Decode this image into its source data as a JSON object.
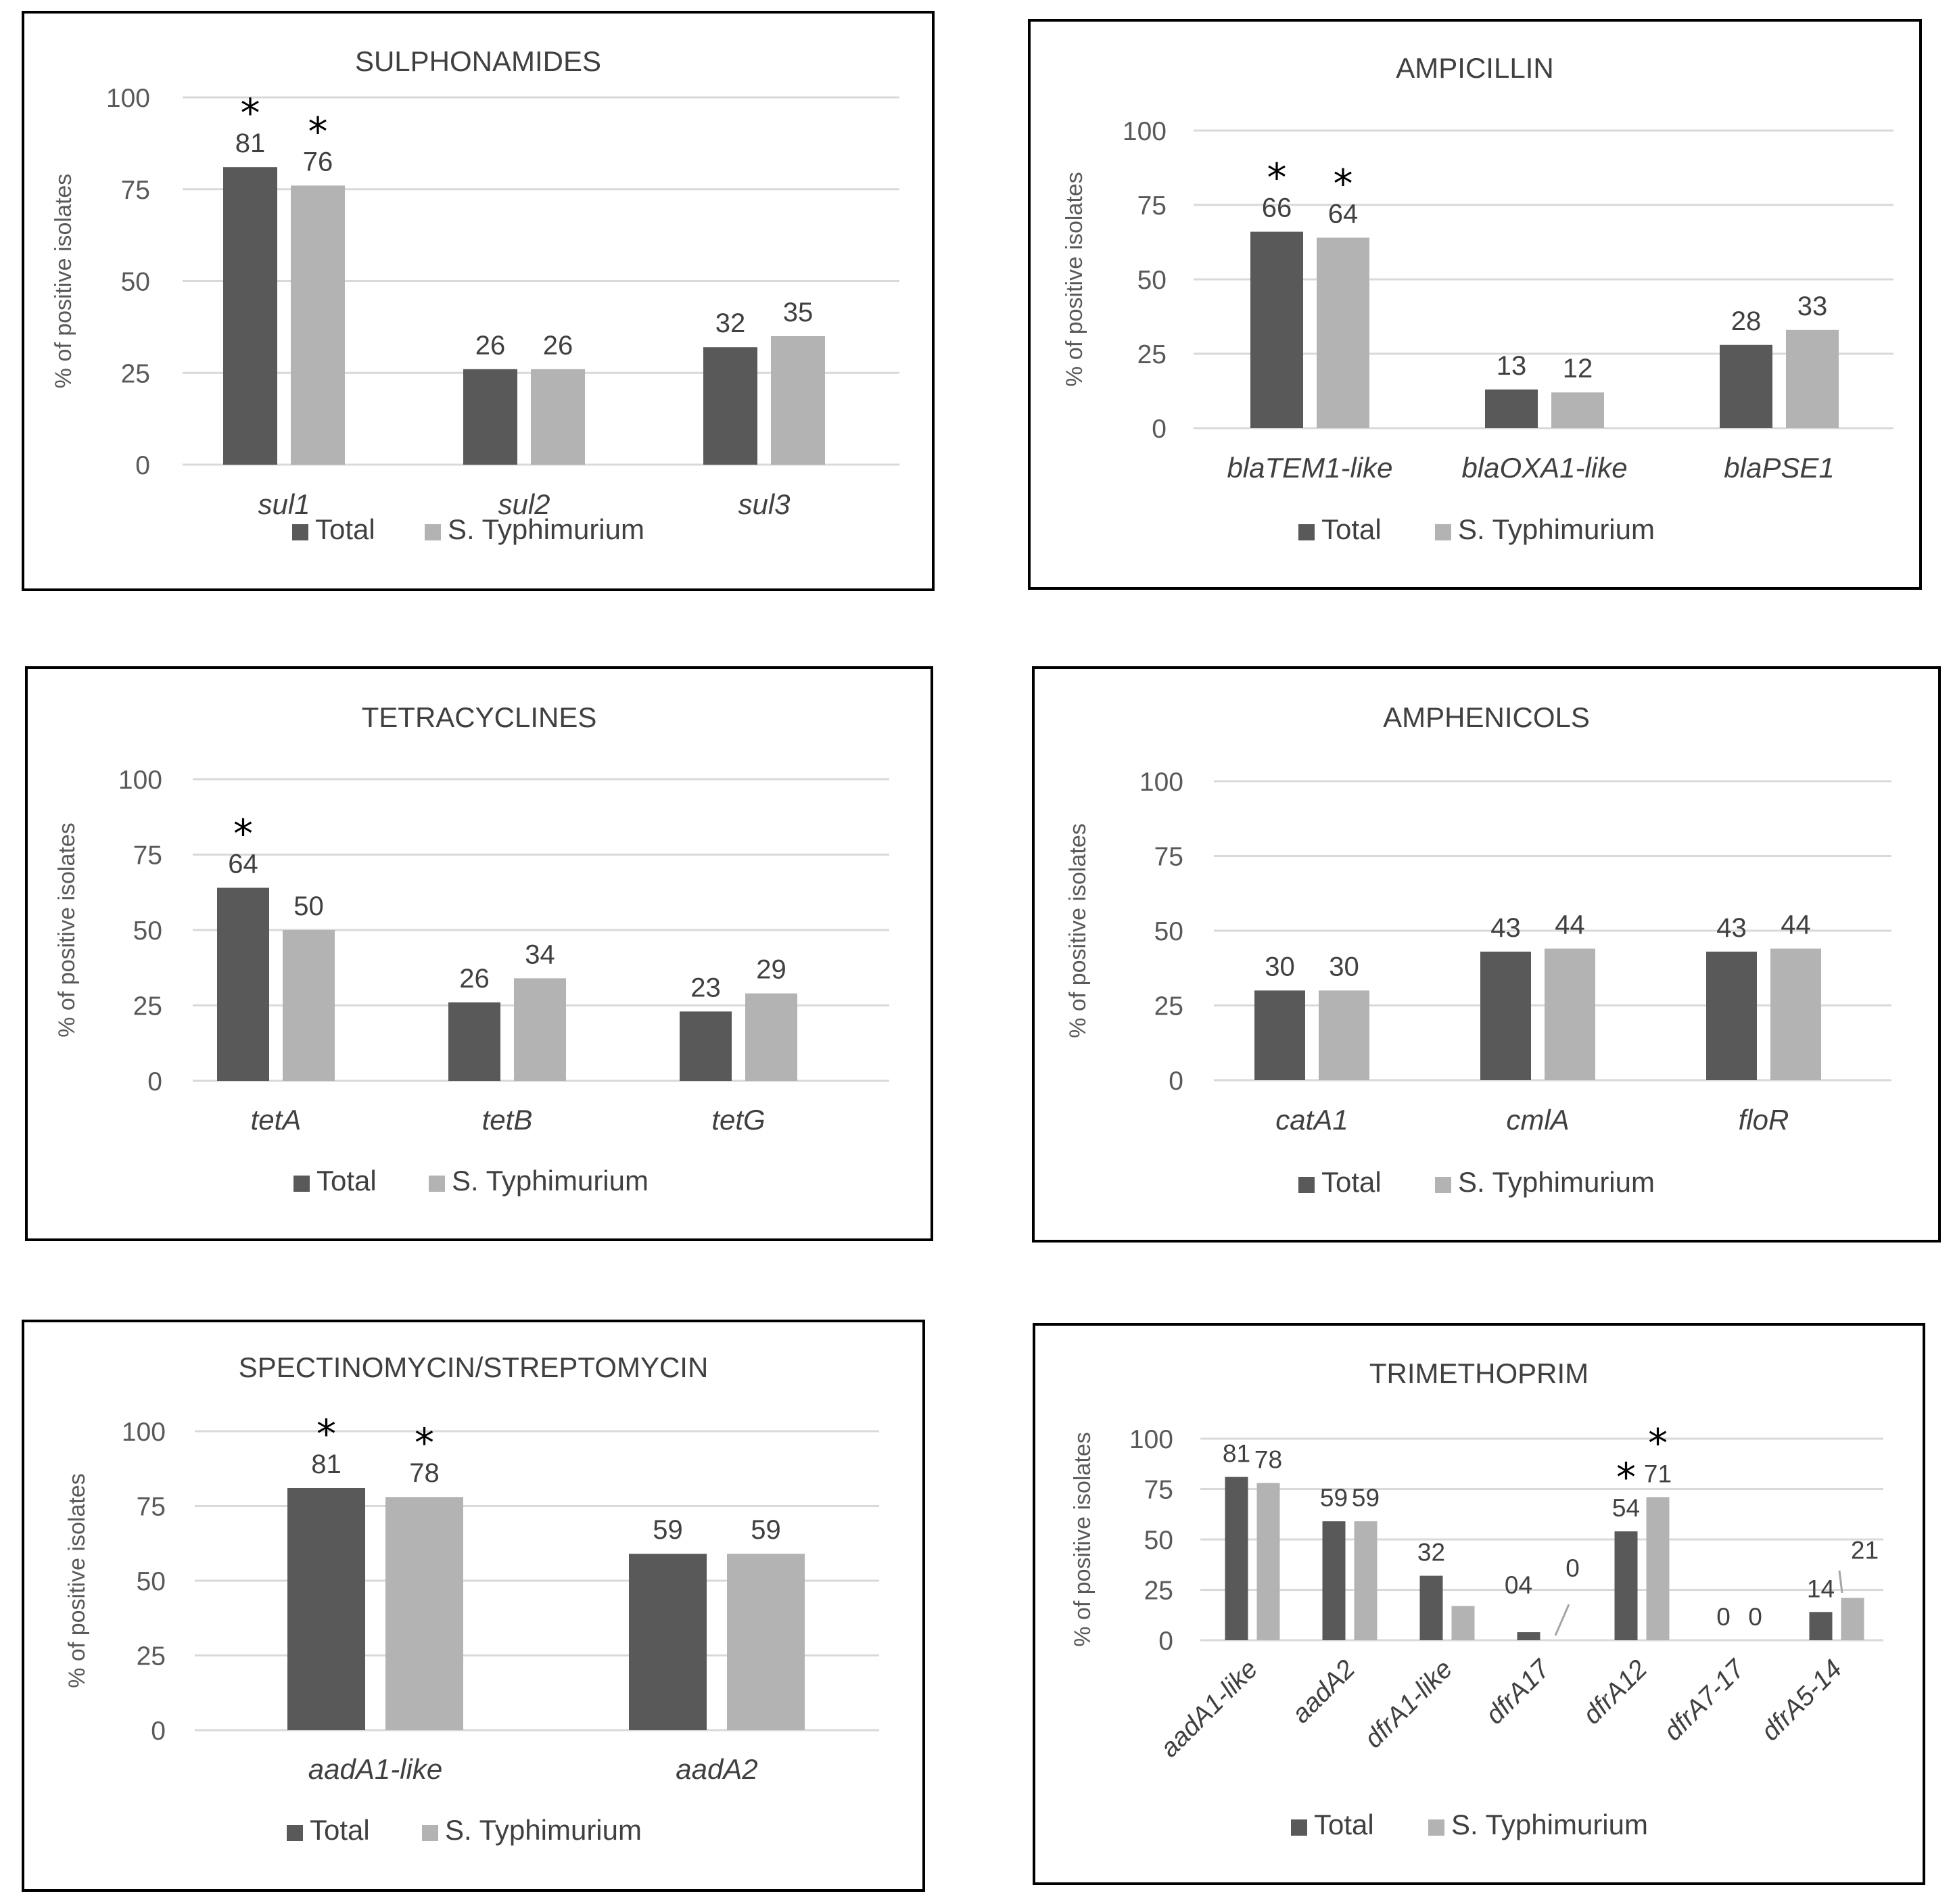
{
  "legend": {
    "total": "Total",
    "typhimurium": "S. Typhimurium"
  },
  "colors": {
    "total": "#595959",
    "typhimurium": "#b3b3b3",
    "grid": "#d9d9d9",
    "border": "#000000"
  },
  "chart_data": [
    {
      "type": "bar",
      "title": "SULPHONAMIDES",
      "ylabel": "% of positive isolates",
      "ylim": [
        0,
        100
      ],
      "yticks": [
        0,
        25,
        50,
        75,
        100
      ],
      "categories": [
        "sul1",
        "sul2",
        "sul3"
      ],
      "series": [
        {
          "name": "Total",
          "values": [
            81,
            26,
            32
          ],
          "labels": [
            "81",
            "26",
            "32"
          ]
        },
        {
          "name": "S. Typhimurium",
          "values": [
            76,
            26,
            35
          ],
          "labels": [
            "76",
            "26",
            "35"
          ]
        }
      ],
      "significant": [
        [
          true,
          false,
          false
        ],
        [
          true,
          false,
          false
        ]
      ],
      "annotation": "*",
      "legend_position": "bottom"
    },
    {
      "type": "bar",
      "title": "AMPICILLIN",
      "ylabel": "% of positive isolates",
      "ylim": [
        0,
        100
      ],
      "yticks": [
        0,
        25,
        50,
        75,
        100
      ],
      "categories": [
        "blaTEM1-like",
        "blaOXA1-like",
        "blaPSE1"
      ],
      "series": [
        {
          "name": "Total",
          "values": [
            66,
            13,
            28
          ],
          "labels": [
            "66",
            "13",
            "28"
          ]
        },
        {
          "name": "S. Typhimurium",
          "values": [
            64,
            12,
            33
          ],
          "labels": [
            "64",
            "12",
            "33"
          ]
        }
      ],
      "significant": [
        [
          true,
          false,
          false
        ],
        [
          true,
          false,
          false
        ]
      ],
      "annotation": "*",
      "legend_position": "bottom"
    },
    {
      "type": "bar",
      "title": "TETRACYCLINES",
      "ylabel": "% of positive isolates",
      "ylim": [
        0,
        100
      ],
      "yticks": [
        0,
        25,
        50,
        75,
        100
      ],
      "categories": [
        "tetA",
        "tetB",
        "tetG"
      ],
      "series": [
        {
          "name": "Total",
          "values": [
            64,
            26,
            23
          ],
          "labels": [
            "64",
            "26",
            "23"
          ]
        },
        {
          "name": "S. Typhimurium",
          "values": [
            50,
            34,
            29
          ],
          "labels": [
            "50",
            "34",
            "29"
          ]
        }
      ],
      "significant": [
        [
          true,
          false,
          false
        ],
        [
          false,
          false,
          false
        ]
      ],
      "annotation": "*",
      "legend_position": "bottom"
    },
    {
      "type": "bar",
      "title": "AMPHENICOLS",
      "ylabel": "% of positive isolates",
      "ylim": [
        0,
        100
      ],
      "yticks": [
        0,
        25,
        50,
        75,
        100
      ],
      "categories": [
        "catA1",
        "cmlA",
        "floR"
      ],
      "series": [
        {
          "name": "Total",
          "values": [
            30,
            43,
            43
          ],
          "labels": [
            "30",
            "43",
            "43"
          ]
        },
        {
          "name": "S. Typhimurium",
          "values": [
            30,
            44,
            44
          ],
          "labels": [
            "30",
            "44",
            "44"
          ]
        }
      ],
      "significant": [
        [
          false,
          false,
          false
        ],
        [
          false,
          false,
          false
        ]
      ],
      "annotation": "*",
      "legend_position": "bottom"
    },
    {
      "type": "bar",
      "title": "SPECTINOMYCIN/STREPTOMYCIN",
      "ylabel": "% of positive isolates",
      "ylim": [
        0,
        100
      ],
      "yticks": [
        0,
        25,
        50,
        75,
        100
      ],
      "categories": [
        "aadA1-like",
        "aadA2"
      ],
      "series": [
        {
          "name": "Total",
          "values": [
            81,
            59
          ],
          "labels": [
            "81",
            "59"
          ]
        },
        {
          "name": "S. Typhimurium",
          "values": [
            78,
            59
          ],
          "labels": [
            "78",
            "59"
          ]
        }
      ],
      "significant": [
        [
          true,
          false
        ],
        [
          true,
          false
        ]
      ],
      "annotation": "*",
      "legend_position": "bottom"
    },
    {
      "type": "bar",
      "title": "TRIMETHOPRIM",
      "ylabel": "% of positive isolates",
      "ylim": [
        0,
        100
      ],
      "yticks": [
        0,
        25,
        50,
        75,
        100
      ],
      "categories": [
        "aadA1-like",
        "aadA2",
        "dfrA1-like",
        "dfrA17",
        "dfrA12",
        "dfrA7-17",
        "dfrA5-14"
      ],
      "series": [
        {
          "name": "Total",
          "values": [
            81,
            59,
            32,
            4,
            54,
            0,
            14
          ],
          "labels": [
            "81",
            "59",
            "32",
            "04",
            "54",
            "0",
            "14"
          ]
        },
        {
          "name": "S. Typhimurium",
          "values": [
            78,
            59,
            17,
            0,
            71,
            0,
            21
          ],
          "labels": [
            "78",
            "59",
            "",
            "0",
            "71",
            "0",
            "21"
          ]
        }
      ],
      "significant": [
        [
          false,
          false,
          false,
          false,
          true,
          false,
          false
        ],
        [
          false,
          false,
          false,
          false,
          true,
          false,
          false
        ]
      ],
      "annotation": "*",
      "legend_position": "bottom"
    }
  ]
}
